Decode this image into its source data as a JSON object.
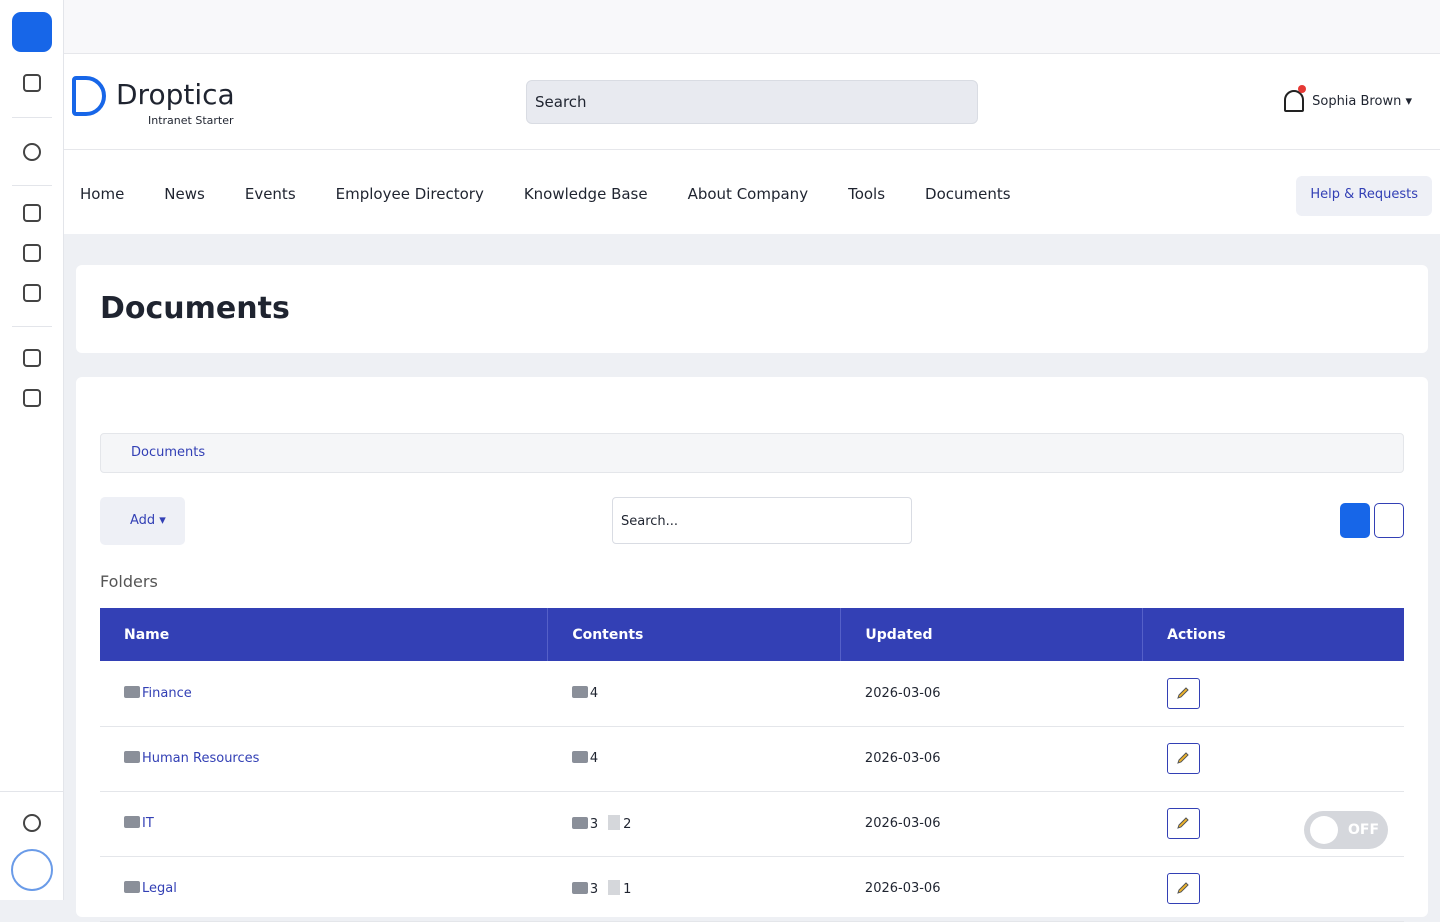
{
  "brand": {
    "name": "Droptica",
    "tagline": "Intranet Starter"
  },
  "header": {
    "search": "Search",
    "user": "Sophia Brown"
  },
  "nav": {
    "items": [
      "Home",
      "News",
      "Events",
      "Employee Directory",
      "Knowledge Base",
      "About Company",
      "Tools",
      "Documents"
    ],
    "help": "Help & Requests"
  },
  "page": {
    "title": "Documents",
    "breadcrumb": "Documents",
    "add": "Add",
    "search": "Search...",
    "section": "Folders",
    "toggle": "OFF"
  },
  "table": {
    "columns": [
      "Name",
      "Contents",
      "Updated",
      "Actions"
    ],
    "rows": [
      {
        "name": "Finance",
        "folders": 4,
        "updated": "2026-03-06"
      },
      {
        "name": "Human Resources",
        "folders": 4,
        "updated": "2026-03-06"
      },
      {
        "name": "IT",
        "folders": 3,
        "files": 2,
        "updated": "2026-03-06"
      },
      {
        "name": "Legal",
        "folders": 3,
        "files": 1,
        "updated": "2026-03-06"
      }
    ]
  }
}
